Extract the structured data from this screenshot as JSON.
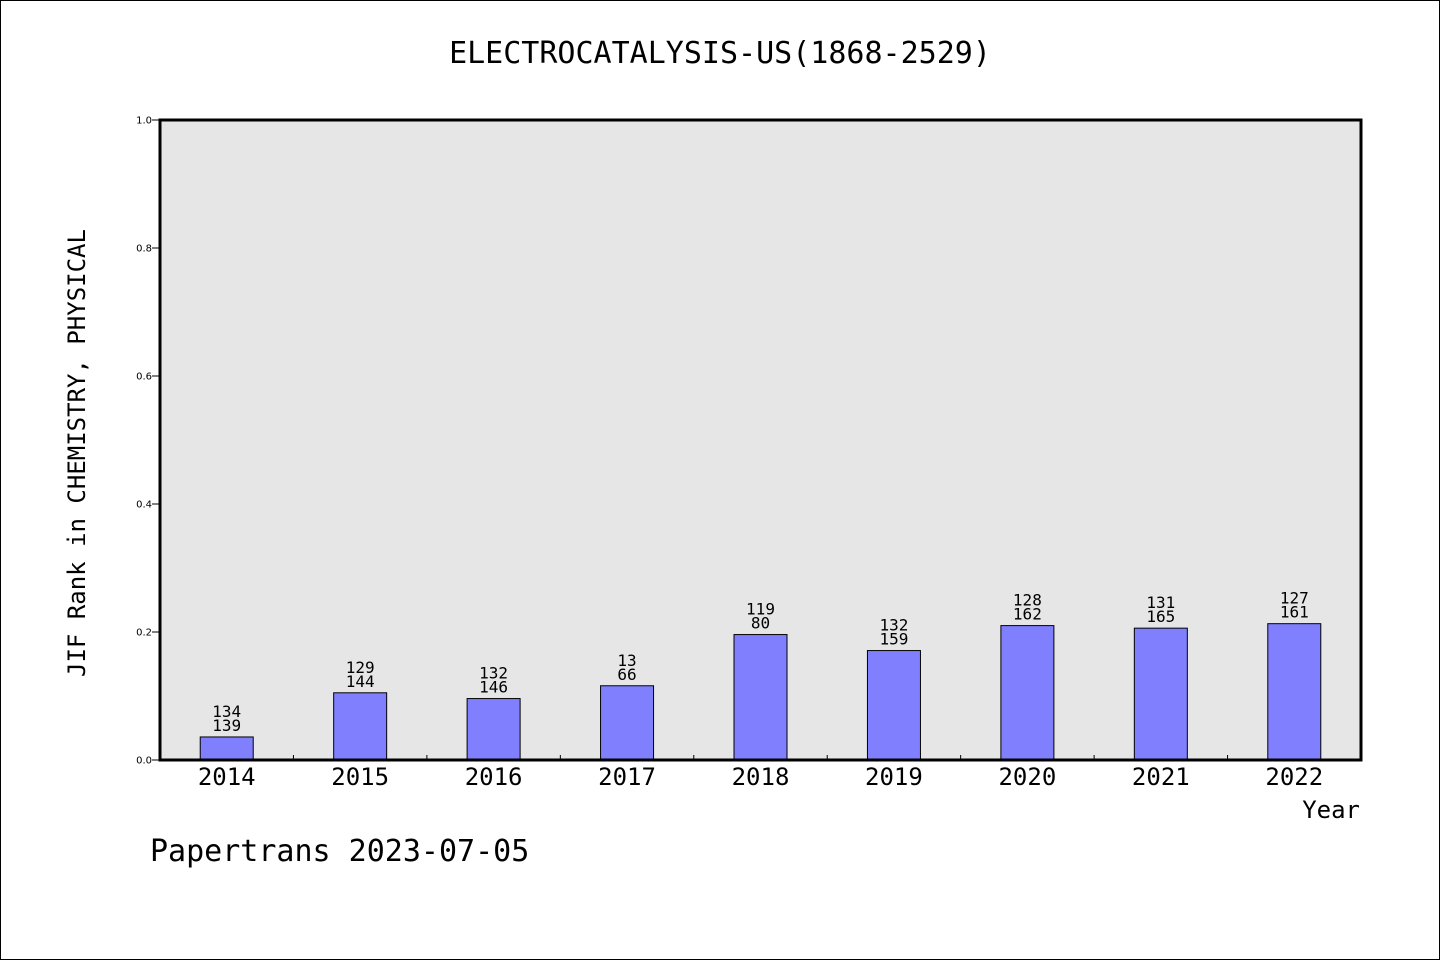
{
  "chart_data": {
    "type": "bar",
    "title": "ELECTROCATALYSIS-US(1868-2529)",
    "xlabel": "Year",
    "ylabel": "JIF Rank in CHEMISTRY, PHYSICAL",
    "ylim": [
      0,
      1.0
    ],
    "yticks": [
      "0.0",
      "0.2",
      "0.4",
      "0.6",
      "0.8",
      "1.0"
    ],
    "categories": [
      "2014",
      "2015",
      "2016",
      "2017",
      "2018",
      "2019",
      "2020",
      "2021",
      "2022"
    ],
    "values": [
      0.036,
      0.105,
      0.096,
      0.116,
      0.196,
      0.171,
      0.21,
      0.206,
      0.213
    ],
    "labels_top": [
      "134",
      "129",
      "132",
      "13",
      "119",
      "132",
      "128",
      "131",
      "127"
    ],
    "labels_bottom": [
      "139",
      "144",
      "146",
      "66",
      "80",
      "159",
      "162",
      "165",
      "161"
    ],
    "bar_color": "#8080ff",
    "plot_background": "#e6e6e6",
    "grid": false,
    "legend": "none"
  },
  "footer": "Papertrans 2023-07-05"
}
